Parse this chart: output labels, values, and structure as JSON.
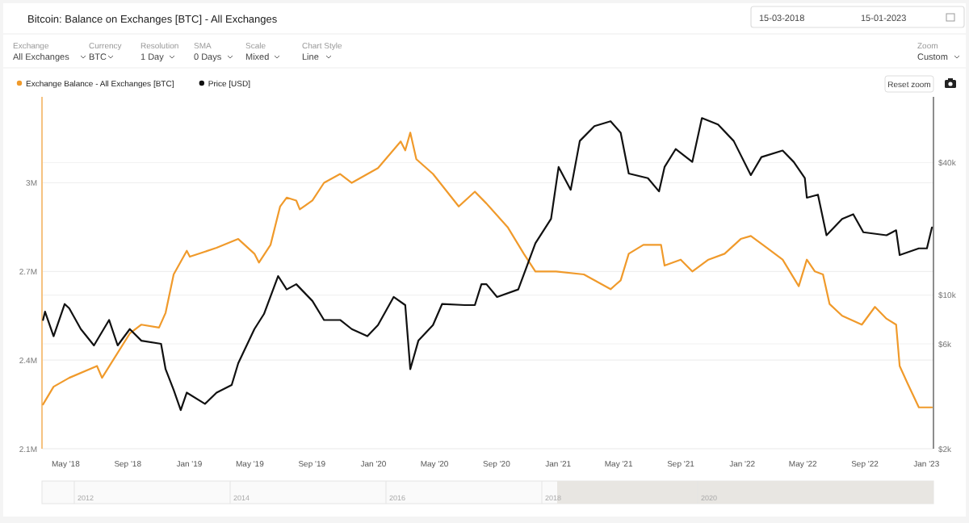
{
  "chart_data": {
    "type": "line",
    "title": "Bitcoin: Balance on Exchanges [BTC] - All Exchanges",
    "annotations": [
      "15-03-2018",
      "15-01-2023",
      "Exchange",
      "All Exchanges",
      "Currency",
      "BTC",
      "Resolution",
      "1 Day",
      "SMA",
      "0 Days",
      "Scale",
      "Mixed",
      "Chart Style",
      "Line",
      "Zoom",
      "Custom",
      "Reset zoom",
      "2012",
      "2014",
      "2016",
      "2018",
      "2020"
    ],
    "xlim": [
      "2018-03-15",
      "2023-01-15"
    ],
    "xticks": [
      {
        "value": "2018-05-01",
        "label": "May '18"
      },
      {
        "value": "2018-09-01",
        "label": "Sep '18"
      },
      {
        "value": "2019-01-01",
        "label": "Jan '19"
      },
      {
        "value": "2019-05-01",
        "label": "May '19"
      },
      {
        "value": "2019-09-01",
        "label": "Sep '19"
      },
      {
        "value": "2020-01-01",
        "label": "Jan '20"
      },
      {
        "value": "2020-05-01",
        "label": "May '20"
      },
      {
        "value": "2020-09-01",
        "label": "Sep '20"
      },
      {
        "value": "2021-01-01",
        "label": "Jan '21"
      },
      {
        "value": "2021-05-01",
        "label": "May '21"
      },
      {
        "value": "2021-09-01",
        "label": "Sep '21"
      },
      {
        "value": "2022-01-01",
        "label": "Jan '22"
      },
      {
        "value": "2022-05-01",
        "label": "May '22"
      },
      {
        "value": "2022-09-01",
        "label": "Sep '22"
      },
      {
        "value": "2023-01-01",
        "label": "Jan '23"
      }
    ],
    "ylim": [
      2100000,
      3280000
    ],
    "yticks": [
      {
        "value": 2100000,
        "label": "2.1M"
      },
      {
        "value": 2400000,
        "label": "2.4M"
      },
      {
        "value": 2700000,
        "label": "2.7M"
      },
      {
        "value": 3000000,
        "label": "3M"
      }
    ],
    "y2lim": [
      2000,
      77000
    ],
    "y2ticks": [
      {
        "value": 2000,
        "label": "$2k"
      },
      {
        "value": 6000,
        "label": "$6k"
      },
      {
        "value": 10000,
        "label": "$10k"
      },
      {
        "value": 40000,
        "label": "$40k"
      }
    ],
    "log": "y2",
    "grid": "y",
    "legend": "top left",
    "series": [
      {
        "name": "Exchange Balance - All Exchanges [BTC]",
        "color": "#f09a2b",
        "x": [
          "2018-03-17",
          "2018-04-07",
          "2018-05-08",
          "2018-07-02",
          "2018-07-12",
          "2018-08-03",
          "2018-09-05",
          "2018-09-28",
          "2018-11-02",
          "2018-11-15",
          "2018-12-01",
          "2018-12-27",
          "2019-01-02",
          "2019-02-24",
          "2019-04-08",
          "2019-05-10",
          "2019-05-19",
          "2019-06-11",
          "2019-06-30",
          "2019-07-13",
          "2019-08-01",
          "2019-08-08",
          "2019-09-02",
          "2019-09-25",
          "2019-10-27",
          "2019-11-19",
          "2020-01-10",
          "2020-02-24",
          "2020-03-04",
          "2020-03-14",
          "2020-03-26",
          "2020-04-28",
          "2020-06-18",
          "2020-07-20",
          "2020-08-12",
          "2020-09-23",
          "2020-10-25",
          "2020-11-17",
          "2020-12-28",
          "2021-02-21",
          "2021-04-15",
          "2021-05-05",
          "2021-05-21",
          "2021-06-19",
          "2021-07-24",
          "2021-07-31",
          "2021-09-01",
          "2021-09-24",
          "2021-10-26",
          "2021-11-27",
          "2021-12-29",
          "2022-01-18",
          "2022-02-19",
          "2022-03-22",
          "2022-04-23",
          "2022-05-09",
          "2022-05-25",
          "2022-06-10",
          "2022-06-23",
          "2022-07-18",
          "2022-08-26",
          "2022-09-21",
          "2022-10-14",
          "2022-11-02",
          "2022-11-09",
          "2022-11-25",
          "2022-12-17",
          "2023-01-12"
        ],
        "values": [
          2250000,
          2310000,
          2340000,
          2380000,
          2340000,
          2400000,
          2490000,
          2520000,
          2510000,
          2560000,
          2690000,
          2770000,
          2750000,
          2780000,
          2810000,
          2760000,
          2730000,
          2790000,
          2920000,
          2950000,
          2940000,
          2910000,
          2940000,
          3000000,
          3030000,
          3000000,
          3050000,
          3140000,
          3110000,
          3170000,
          3080000,
          3030000,
          2920000,
          2970000,
          2930000,
          2850000,
          2760000,
          2700000,
          2700000,
          2690000,
          2640000,
          2670000,
          2760000,
          2790000,
          2790000,
          2720000,
          2740000,
          2700000,
          2740000,
          2760000,
          2810000,
          2820000,
          2780000,
          2740000,
          2650000,
          2740000,
          2700000,
          2690000,
          2590000,
          2550000,
          2520000,
          2580000,
          2540000,
          2520000,
          2380000,
          2320000,
          2240000,
          2240000
        ]
      },
      {
        "name": "Price [USD]",
        "color": "#111111",
        "axis": "y2",
        "x": [
          "2018-03-17",
          "2018-03-21",
          "2018-04-07",
          "2018-04-29",
          "2018-05-08",
          "2018-05-31",
          "2018-06-26",
          "2018-07-26",
          "2018-08-12",
          "2018-09-05",
          "2018-09-28",
          "2018-11-06",
          "2018-11-15",
          "2018-12-01",
          "2018-12-15",
          "2018-12-27",
          "2019-02-01",
          "2019-02-24",
          "2019-03-26",
          "2019-04-08",
          "2019-05-10",
          "2019-05-29",
          "2019-06-26",
          "2019-07-13",
          "2019-08-01",
          "2019-09-02",
          "2019-09-25",
          "2019-10-27",
          "2019-11-19",
          "2019-12-20",
          "2020-01-10",
          "2020-02-10",
          "2020-03-04",
          "2020-03-14",
          "2020-03-30",
          "2020-04-28",
          "2020-05-16",
          "2020-06-30",
          "2020-07-20",
          "2020-08-02",
          "2020-08-12",
          "2020-09-02",
          "2020-10-14",
          "2020-11-17",
          "2020-12-18",
          "2021-01-02",
          "2021-01-26",
          "2021-02-13",
          "2021-03-14",
          "2021-04-15",
          "2021-05-05",
          "2021-05-21",
          "2021-06-28",
          "2021-07-20",
          "2021-07-31",
          "2021-08-22",
          "2021-09-24",
          "2021-10-13",
          "2021-11-14",
          "2021-12-15",
          "2022-01-18",
          "2022-02-08",
          "2022-03-22",
          "2022-04-13",
          "2022-05-05",
          "2022-05-09",
          "2022-05-31",
          "2022-06-17",
          "2022-07-18",
          "2022-08-09",
          "2022-08-29",
          "2022-10-14",
          "2022-11-02",
          "2022-11-09",
          "2022-12-17",
          "2023-01-02",
          "2023-01-12"
        ],
        "values": [
          7700,
          8400,
          6500,
          9100,
          8700,
          7000,
          5900,
          7700,
          5900,
          7000,
          6200,
          6000,
          4600,
          3700,
          3000,
          3600,
          3200,
          3600,
          3900,
          4900,
          7000,
          8200,
          12200,
          10600,
          11200,
          9400,
          7700,
          7700,
          7000,
          6500,
          7300,
          9800,
          9000,
          4600,
          6200,
          7300,
          9100,
          9000,
          9000,
          11200,
          11200,
          9800,
          10600,
          17200,
          22200,
          38200,
          30100,
          50200,
          58600,
          61700,
          54700,
          35700,
          34000,
          29600,
          38200,
          46100,
          40300,
          63800,
          59600,
          50200,
          35100,
          42400,
          45400,
          40300,
          34000,
          27700,
          28600,
          18700,
          22200,
          23300,
          19300,
          18700,
          19700,
          15200,
          16300,
          16300,
          20300
        ]
      }
    ]
  }
}
